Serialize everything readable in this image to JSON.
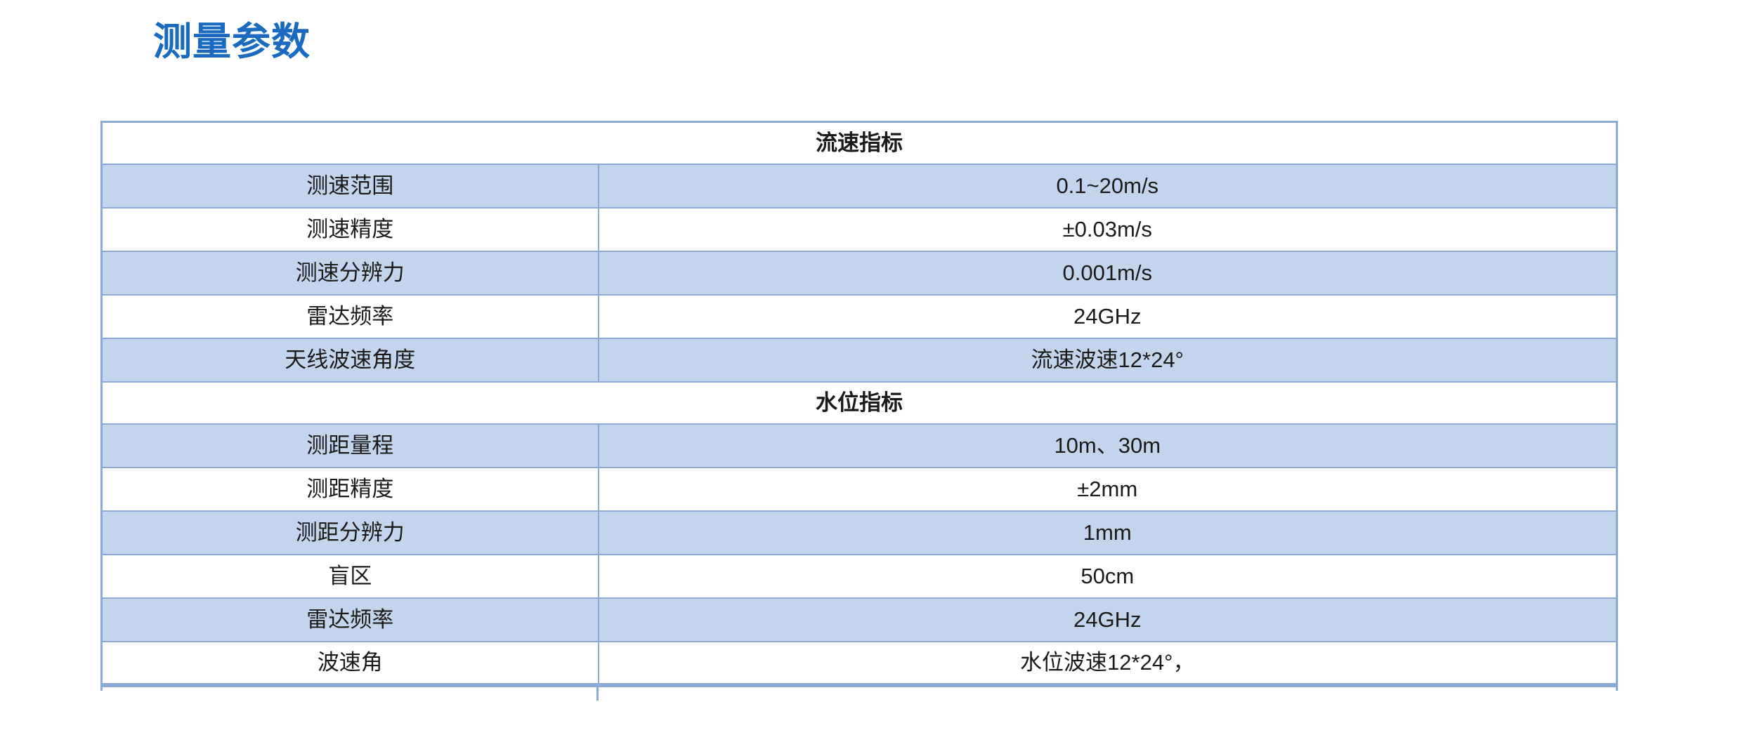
{
  "page": {
    "title": "测量参数"
  },
  "colors": {
    "title": "#1a6bbf",
    "border": "#8aabd6",
    "row_fill": "#c2d5ed",
    "row_plain": "#ffffff",
    "text": "#1a1a1a"
  },
  "table": {
    "sections": [
      {
        "header": "流速指标",
        "rows": [
          {
            "label": "测速范围",
            "value": "0.1~20m/s"
          },
          {
            "label": "测速精度",
            "value": "±0.03m/s"
          },
          {
            "label": "测速分辨力",
            "value": "0.001m/s"
          },
          {
            "label": "雷达频率",
            "value": "24GHz"
          },
          {
            "label": "天线波速角度",
            "value": "流速波速12*24°"
          }
        ]
      },
      {
        "header": "水位指标",
        "rows": [
          {
            "label": "测距量程",
            "value": "10m、30m"
          },
          {
            "label": "测距精度",
            "value": "±2mm"
          },
          {
            "label": "测距分辨力",
            "value": "1mm"
          },
          {
            "label": "盲区",
            "value": "50cm"
          },
          {
            "label": "雷达频率",
            "value": "24GHz"
          },
          {
            "label": "波速角",
            "value": "水位波速12*24°，"
          }
        ]
      }
    ]
  }
}
